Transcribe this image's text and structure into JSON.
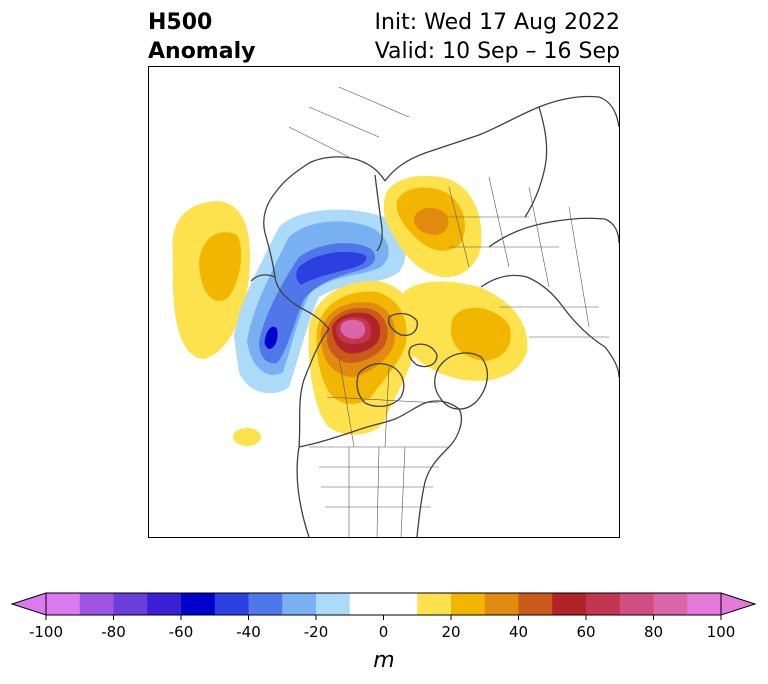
{
  "title": {
    "left_line1": "H500",
    "left_line2": "Anomaly",
    "right_line1": "Init: Wed 17 Aug 2022",
    "right_line2": "Valid: 10 Sep – 16 Sep"
  },
  "map": {
    "projection": "north-polar-stereographic",
    "field": "500 hPa geopotential height anomaly",
    "features": [
      {
        "name": "north-pacific-positive-anomaly",
        "peak_m": 30
      },
      {
        "name": "alaska-western-canada-negative-anomaly",
        "peak_m": -60
      },
      {
        "name": "northern-canada-positive-anomaly",
        "peak_m": 90
      },
      {
        "name": "eastern-siberia-positive-anomaly",
        "peak_m": 40
      },
      {
        "name": "europe-positive-anomaly",
        "peak_m": 30
      },
      {
        "name": "pacific-small-positive-anomaly",
        "peak_m": 20
      }
    ]
  },
  "colorbar": {
    "unit_label": "m",
    "levels": [
      -100,
      -90,
      -80,
      -70,
      -60,
      -50,
      -40,
      -30,
      -20,
      -10,
      10,
      20,
      30,
      40,
      50,
      60,
      70,
      80,
      90,
      100
    ],
    "tick_labels": [
      "-100",
      "-80",
      "-60",
      "-40",
      "-20",
      "0",
      "20",
      "40",
      "60",
      "80",
      "100"
    ],
    "extend": "both",
    "colors": [
      "#d97af0",
      "#a054e4",
      "#6a3ed8",
      "#3a1fd4",
      "#0000cd",
      "#2c3fe0",
      "#5077ea",
      "#78b0f2",
      "#acdaf9",
      "#ffffff",
      "#fde24d",
      "#f3b600",
      "#e08a10",
      "#c95a1a",
      "#b02427",
      "#c23651",
      "#cf4f82",
      "#d966a8",
      "#e57bd8"
    ],
    "under_color": "#d97af0",
    "over_color": "#e57bd8"
  }
}
